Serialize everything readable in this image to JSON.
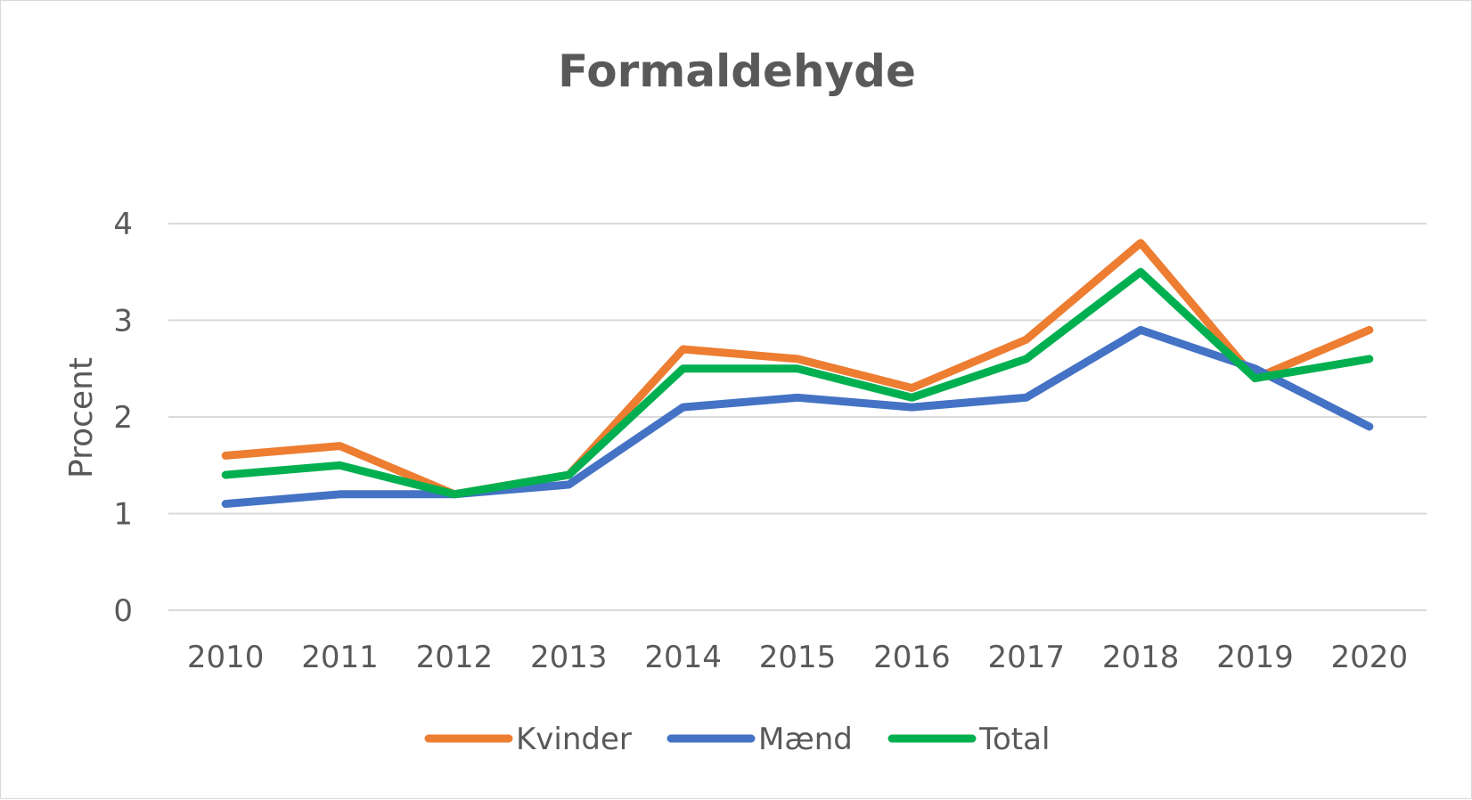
{
  "chart_data": {
    "type": "line",
    "title": "Formaldehyde",
    "xlabel": "",
    "ylabel": "Procent",
    "ylim": [
      0,
      4
    ],
    "yticks": [
      "0",
      "1",
      "2",
      "3",
      "4"
    ],
    "categories": [
      "2010",
      "2011",
      "2012",
      "2013",
      "2014",
      "2015",
      "2016",
      "2017",
      "2018",
      "2019",
      "2020"
    ],
    "grid": true,
    "legend_position": "bottom",
    "series": [
      {
        "name": "Kvinder",
        "color": "#ed7d31",
        "values": [
          1.6,
          1.7,
          1.2,
          1.4,
          2.7,
          2.6,
          2.3,
          2.8,
          3.8,
          2.4,
          2.9
        ]
      },
      {
        "name": "Mænd",
        "color": "#4472c4",
        "values": [
          1.1,
          1.2,
          1.2,
          1.3,
          2.1,
          2.2,
          2.1,
          2.2,
          2.9,
          2.5,
          1.9
        ]
      },
      {
        "name": "Total",
        "color": "#00b050",
        "values": [
          1.4,
          1.5,
          1.2,
          1.4,
          2.5,
          2.5,
          2.2,
          2.6,
          3.5,
          2.4,
          2.6
        ]
      }
    ]
  }
}
